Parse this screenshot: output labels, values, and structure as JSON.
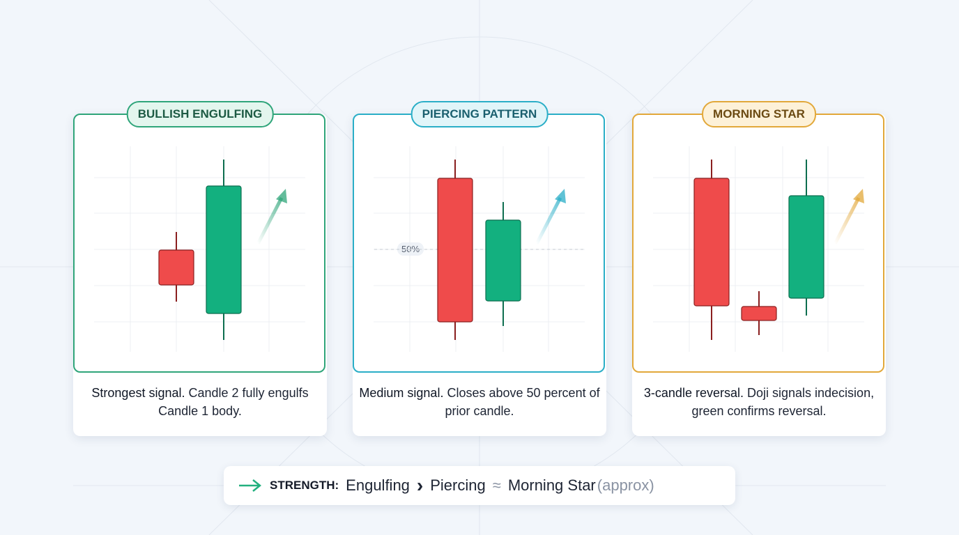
{
  "cards": [
    {
      "title": "BULLISH ENGULFING",
      "color": "#2fa57a",
      "badge_bg": "#e3f6ee",
      "badge_text": "#1c5a43",
      "desc_strong": "Strongest signal.",
      "desc_rest": " Candle 2 fully engulfs Candle 1 body."
    },
    {
      "title": "PIERCING PATTERN",
      "color": "#2aaec7",
      "badge_bg": "#e1f5f9",
      "badge_text": "#1a5f6e",
      "desc_strong": "Medium signal.",
      "desc_rest": " Closes above 50 percent of prior candle.",
      "level_label": "50%"
    },
    {
      "title": "MORNING STAR",
      "color": "#e2a83a",
      "badge_bg": "#fdf1d8",
      "badge_text": "#6b4a12",
      "desc_strong": "3-candle reversal.",
      "desc_rest": " Doji signals indecision, green confirms reversal."
    }
  ],
  "colors": {
    "bullish": "#13b07f",
    "bearish": "#ef4b4b"
  },
  "strength": {
    "label": "STRENGTH:",
    "first": "Engulfing",
    "op1": "›",
    "second": "Piercing",
    "op2": "≈",
    "third": "Morning Star",
    "note": "(approx)",
    "arrow_icon": "arrow-right-icon"
  }
}
